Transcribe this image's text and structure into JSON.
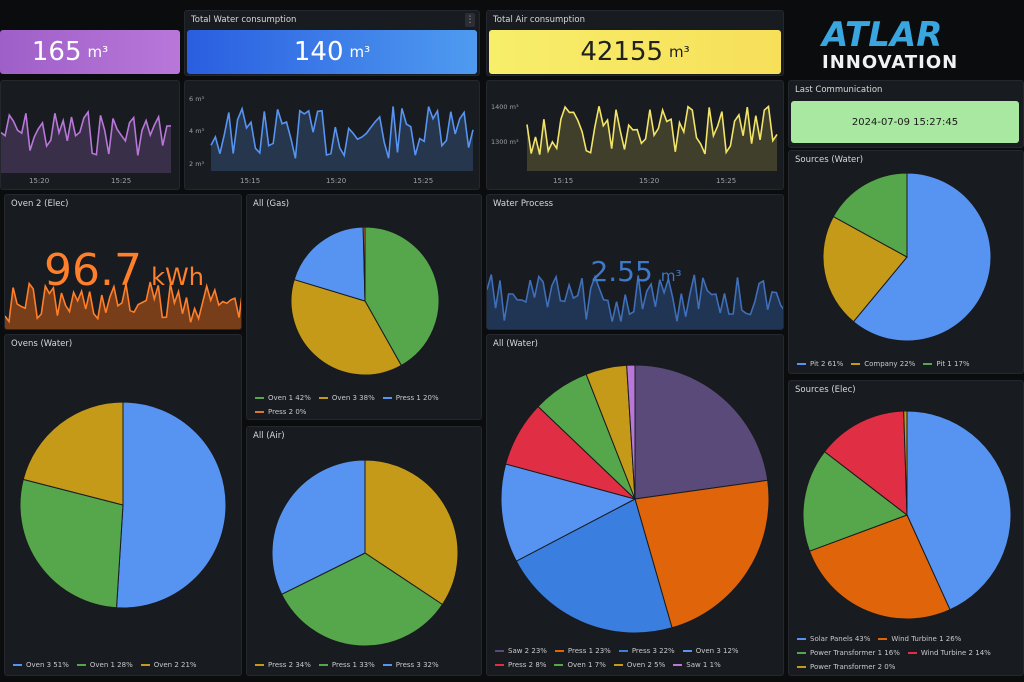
{
  "colors": {
    "purple": "#b877d9",
    "blue": "#3274d9",
    "yellow": "#f2e468",
    "green": "#73bf69",
    "orange": "#ff780a",
    "red": "#f2495c",
    "lightgreen": "#a8e8a0",
    "panel": "#181b1f"
  },
  "logo": {
    "line1": "ATLAR",
    "line2": "INNOVATION"
  },
  "stat_elec": {
    "value": "165",
    "unit": "m³"
  },
  "stat_water": {
    "title": "Total Water consumption",
    "value": "140",
    "unit": "m³"
  },
  "stat_air": {
    "title": "Total Air consumption",
    "value": "42155",
    "unit": "m³"
  },
  "last_comm": {
    "title": "Last Communication",
    "value": "2024-07-09 15:27:45"
  },
  "spark1": {
    "ticks_x": [
      "15:20",
      "15:25"
    ]
  },
  "spark2": {
    "ticks_y": [
      "6 m³",
      "4 m³",
      "2 m³"
    ],
    "ticks_x": [
      "15:15",
      "15:20",
      "15:25"
    ]
  },
  "spark3": {
    "ticks_y": [
      "1400 m³",
      "1300 m³"
    ],
    "ticks_x": [
      "15:15",
      "15:20",
      "15:25"
    ]
  },
  "oven2": {
    "title": "Oven 2 (Elec)",
    "value": "96.7",
    "unit": "kWh"
  },
  "water_process": {
    "title": "Water Process",
    "value": "2.55",
    "unit": "m³"
  },
  "pies": {
    "all_gas": {
      "title": "All (Gas)",
      "slices": [
        {
          "label": "Oven 1",
          "pct": "42%",
          "v": 42,
          "color": "#56a64b"
        },
        {
          "label": "Oven 3",
          "pct": "38%",
          "v": 38,
          "color": "#c49a18"
        },
        {
          "label": "Press 1",
          "pct": "20%",
          "v": 20,
          "color": "#5794f2"
        },
        {
          "label": "Press 2",
          "pct": "0%",
          "v": 0.4,
          "color": "#e0752d"
        }
      ]
    },
    "ovens_water": {
      "title": "Ovens (Water)",
      "slices": [
        {
          "label": "Oven 3",
          "pct": "51%",
          "v": 51,
          "color": "#5794f2"
        },
        {
          "label": "Oven 1",
          "pct": "28%",
          "v": 28,
          "color": "#56a64b"
        },
        {
          "label": "Oven 2",
          "pct": "21%",
          "v": 21,
          "color": "#c49a18"
        }
      ]
    },
    "all_air": {
      "title": "All (Air)",
      "slices": [
        {
          "label": "Press 2",
          "pct": "34%",
          "v": 34,
          "color": "#c49a18"
        },
        {
          "label": "Press 1",
          "pct": "33%",
          "v": 33,
          "color": "#56a64b"
        },
        {
          "label": "Press 3",
          "pct": "32%",
          "v": 32,
          "color": "#5794f2"
        }
      ]
    },
    "all_water": {
      "title": "All (Water)",
      "slices": [
        {
          "label": "Saw 2",
          "pct": "23%",
          "v": 23,
          "color": "#5a4a7a"
        },
        {
          "label": "Press 1",
          "pct": "23%",
          "v": 23,
          "color": "#e0650a"
        },
        {
          "label": "Press 3",
          "pct": "22%",
          "v": 22,
          "color": "#3a7fe0"
        },
        {
          "label": "Oven 3",
          "pct": "12%",
          "v": 12,
          "color": "#5794f2"
        },
        {
          "label": "Press 2",
          "pct": "8%",
          "v": 8,
          "color": "#e02f44"
        },
        {
          "label": "Oven 1",
          "pct": "7%",
          "v": 7,
          "color": "#56a64b"
        },
        {
          "label": "Oven 2",
          "pct": "5%",
          "v": 5,
          "color": "#c49a18"
        },
        {
          "label": "Saw 1",
          "pct": "1%",
          "v": 1,
          "color": "#b877d9"
        }
      ]
    },
    "sources_water": {
      "title": "Sources (Water)",
      "slices": [
        {
          "label": "Pit 2",
          "pct": "61%",
          "v": 61,
          "color": "#5794f2"
        },
        {
          "label": "Company",
          "pct": "22%",
          "v": 22,
          "color": "#c49a18"
        },
        {
          "label": "Pit 1",
          "pct": "17%",
          "v": 17,
          "color": "#56a64b"
        }
      ]
    },
    "sources_elec": {
      "title": "Sources (Elec)",
      "slices": [
        {
          "label": "Solar Panels",
          "pct": "43%",
          "v": 43,
          "color": "#5794f2"
        },
        {
          "label": "Wind Turbine 1",
          "pct": "26%",
          "v": 26,
          "color": "#e0650a"
        },
        {
          "label": "Power Transformer 1",
          "pct": "16%",
          "v": 16,
          "color": "#56a64b"
        },
        {
          "label": "Wind Turbine 2",
          "pct": "14%",
          "v": 14,
          "color": "#e02f44"
        },
        {
          "label": "Power Transformer 2",
          "pct": "0%",
          "v": 0.5,
          "color": "#c49a18"
        }
      ]
    }
  }
}
